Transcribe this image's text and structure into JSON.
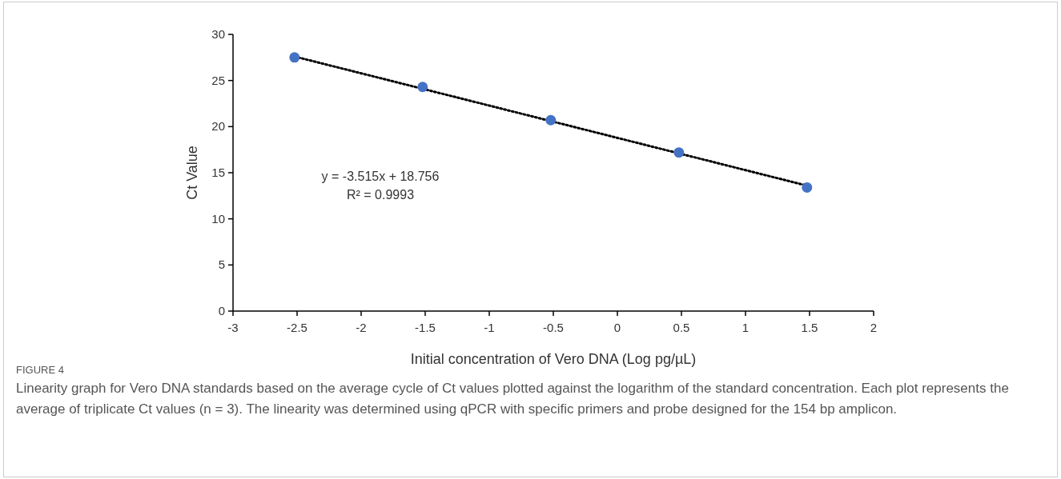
{
  "chart_data": {
    "type": "scatter",
    "xlabel": "Initial concentration of Vero DNA (Log pg/µL)",
    "ylabel": "Ct Value",
    "xlim": [
      -3,
      2
    ],
    "xticks": [
      -3,
      -2.5,
      -2,
      -1.5,
      -1,
      -0.5,
      0,
      0.5,
      1,
      1.5,
      2
    ],
    "ylim": [
      0,
      30
    ],
    "yticks": [
      0,
      5,
      10,
      15,
      20,
      25,
      30
    ],
    "series": [
      {
        "color": "#4472c4",
        "marker": "circle",
        "x": [
          -2.52,
          -1.52,
          -0.52,
          0.48,
          1.48
        ],
        "values": [
          27.5,
          24.3,
          20.7,
          17.2,
          13.4
        ]
      },
      {
        "type": "line",
        "color": "#000000",
        "line_style": "dotted",
        "x": [
          -2.52,
          1.48
        ],
        "values": [
          27.6,
          13.6
        ]
      }
    ],
    "grid": false,
    "annotations": [
      "y = -3.515x + 18.756",
      "R² = 0.9993",
      "FIGURE 4",
      "Linearity graph for Vero DNA standards based on the average cycle of Ct values plotted against the logarithm of the standard concentration. Each plot represents the average of triplicate Ct values (n = 3). The linearity was determined using qPCR with specific primers and probe designed for the 154 bp amplicon."
    ]
  }
}
